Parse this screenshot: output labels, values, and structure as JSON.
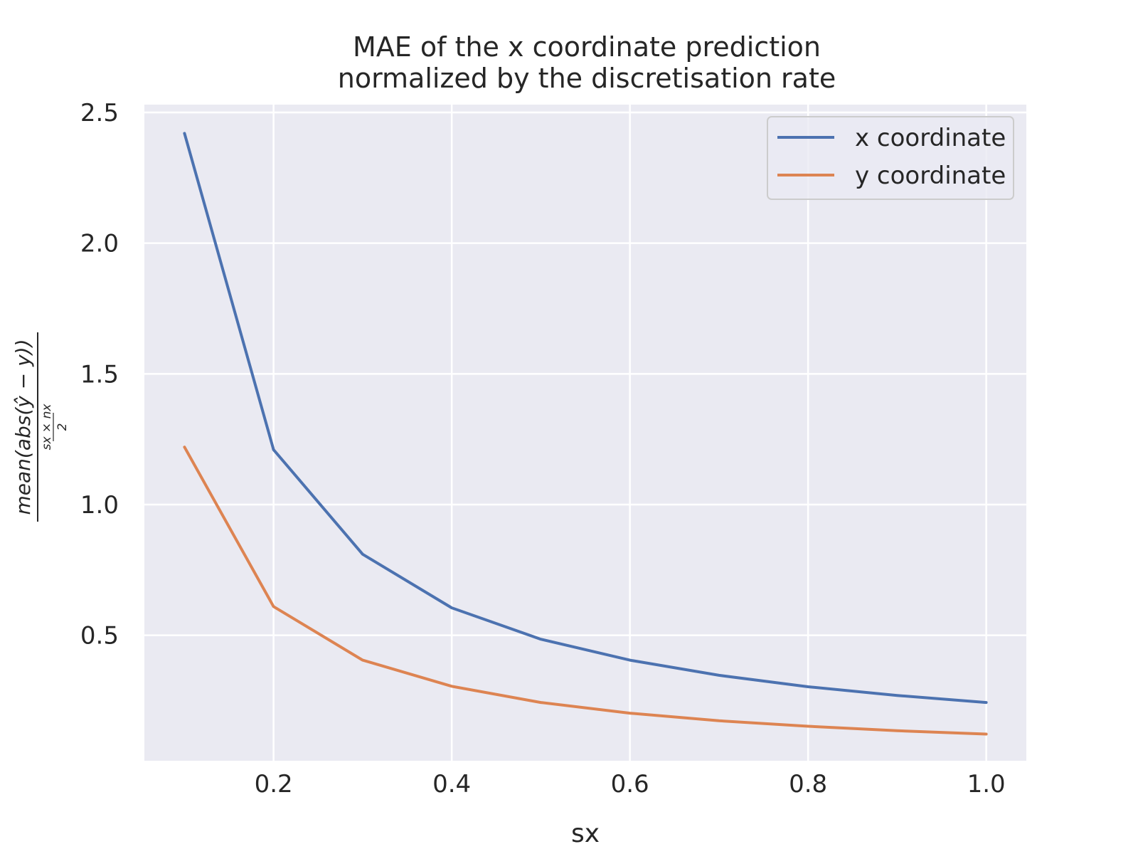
{
  "chart_data": {
    "type": "line",
    "title_lines": [
      "MAE of the x coordinate prediction",
      "normalized by the discretisation rate"
    ],
    "xlabel": "sx",
    "ylabel": {
      "numerator": "mean(abs(ŷ − y))",
      "denominator_numerator": "sx × nx",
      "denominator_denominator": "2"
    },
    "xlim": [
      0.055,
      1.045
    ],
    "ylim": [
      0.02,
      2.53
    ],
    "xticks": [
      0.2,
      0.4,
      0.6,
      0.8,
      1.0
    ],
    "xtick_labels": [
      "0.2",
      "0.4",
      "0.6",
      "0.8",
      "1.0"
    ],
    "yticks": [
      0.5,
      1.0,
      1.5,
      2.0,
      2.5
    ],
    "ytick_labels": [
      "0.5",
      "1.0",
      "1.5",
      "2.0",
      "2.5"
    ],
    "grid": true,
    "legend_position": "top-right",
    "background_color": "#eaeaf2",
    "grid_color": "#ffffff",
    "x": [
      0.1,
      0.2,
      0.3,
      0.4,
      0.5,
      0.6,
      0.7,
      0.8,
      0.9,
      1.0
    ],
    "series": [
      {
        "name": "x coordinate",
        "color": "#4c72b0",
        "values": [
          2.42,
          1.21,
          0.81,
          0.605,
          0.485,
          0.405,
          0.347,
          0.303,
          0.27,
          0.243
        ]
      },
      {
        "name": "y coordinate",
        "color": "#dd8452",
        "values": [
          1.22,
          0.61,
          0.405,
          0.305,
          0.243,
          0.202,
          0.173,
          0.152,
          0.135,
          0.122
        ]
      }
    ]
  }
}
